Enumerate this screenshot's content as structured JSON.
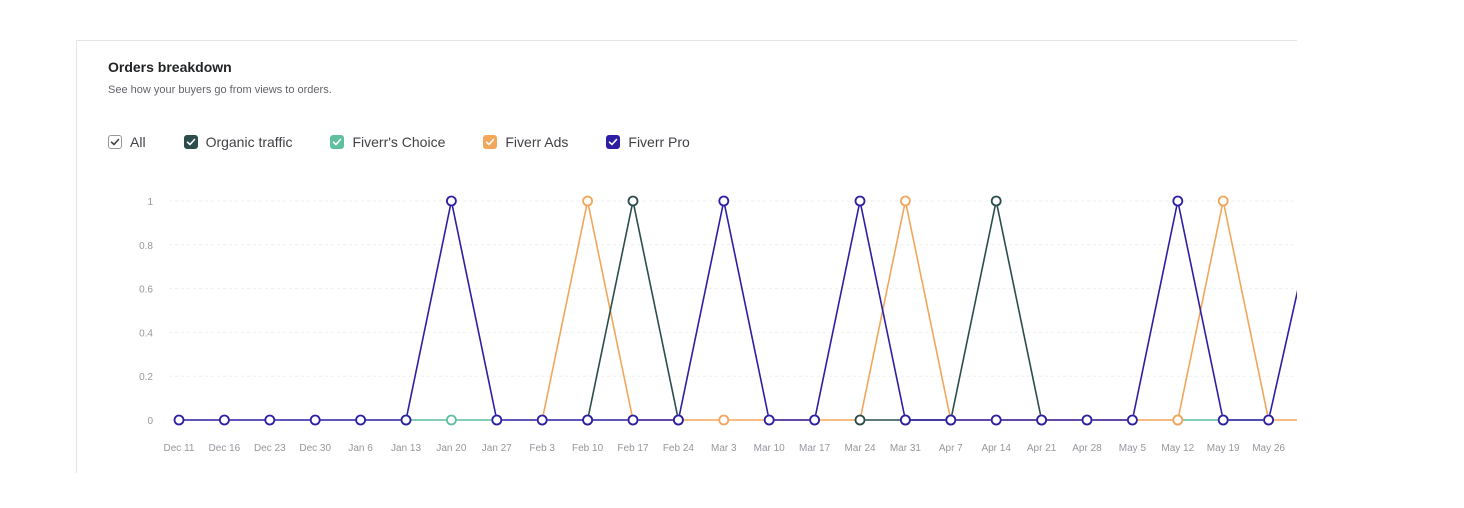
{
  "card": {
    "title": "Orders breakdown",
    "subtitle": "See how your buyers go from views to orders."
  },
  "legend": [
    {
      "label": "All",
      "color": "#ffffff",
      "border": "#95979d",
      "check": "#404145",
      "checked": true
    },
    {
      "label": "Organic traffic",
      "color": "#2b4e4d",
      "border": "#2b4e4d",
      "check": "#ffffff",
      "checked": true
    },
    {
      "label": "Fiverr's Choice",
      "color": "#5fbf9f",
      "border": "#5fbf9f",
      "check": "#ffffff",
      "checked": true
    },
    {
      "label": "Fiverr Ads",
      "color": "#f2a65a",
      "border": "#f2a65a",
      "check": "#ffffff",
      "checked": true
    },
    {
      "label": "Fiverr Pro",
      "color": "#2d1fa3",
      "border": "#2d1fa3",
      "check": "#ffffff",
      "checked": true
    }
  ],
  "chart_data": {
    "type": "line",
    "title": "",
    "xlabel": "",
    "ylabel": "",
    "ylim": [
      0,
      1
    ],
    "yticks": [
      "0",
      "0.2",
      "0.4",
      "0.6",
      "0.8",
      "1"
    ],
    "grid": true,
    "categories": [
      "Dec 11",
      "Dec 16",
      "Dec 23",
      "Dec 30",
      "Jan 6",
      "Jan 13",
      "Jan 20",
      "Jan 27",
      "Feb 3",
      "Feb 10",
      "Feb 17",
      "Feb 24",
      "Mar 3",
      "Mar 10",
      "Mar 17",
      "Mar 24",
      "Mar 31",
      "Apr 7",
      "Apr 14",
      "Apr 21",
      "Apr 28",
      "May 5",
      "May 12",
      "May 19",
      "May 26"
    ],
    "series": [
      {
        "name": "Fiverr's Choice",
        "color": "#5fbf9f",
        "marker_every": false,
        "values": [
          null,
          null,
          null,
          null,
          null,
          0,
          0,
          0,
          null,
          null,
          null,
          null,
          null,
          null,
          null,
          null,
          null,
          null,
          null,
          null,
          null,
          null,
          0,
          0,
          0
        ]
      },
      {
        "name": "Fiverr Ads",
        "color": "#f2a65a",
        "marker_every": true,
        "values": [
          null,
          null,
          null,
          null,
          null,
          null,
          null,
          null,
          0,
          1,
          0,
          0,
          0,
          0,
          0,
          0,
          1,
          0,
          0,
          0,
          0,
          0,
          0,
          1,
          0
        ]
      },
      {
        "name": "Organic traffic",
        "color": "#2b4e4d",
        "marker_every": true,
        "values": [
          null,
          null,
          null,
          null,
          null,
          null,
          null,
          null,
          null,
          0,
          1,
          0,
          null,
          null,
          null,
          0,
          0,
          0,
          1,
          0,
          null,
          null,
          null,
          null,
          null
        ]
      },
      {
        "name": "Fiverr Pro",
        "color": "#2d1fa3",
        "marker_every": true,
        "values": [
          0,
          0,
          0,
          0,
          0,
          0,
          1,
          0,
          0,
          0,
          0,
          0,
          1,
          0,
          0,
          1,
          0,
          0,
          0,
          0,
          0,
          0,
          1,
          0,
          0
        ]
      }
    ],
    "trailing": {
      "Fiverr Pro": 0.6,
      "Fiverr Ads": 0
    }
  }
}
